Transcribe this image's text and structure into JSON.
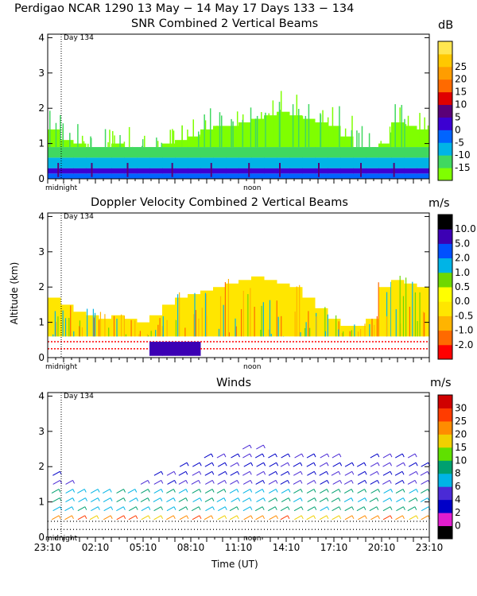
{
  "header": {
    "line1": "Perdigao NCAR 1290  13 May − 14 May 17 Days 133 − 134"
  },
  "colors": {
    "snr": [
      "#7fff00",
      "#40d860",
      "#00b4e6",
      "#0064ff",
      "#3c00d2",
      "#5a0078",
      "#e00000",
      "#ff6a00",
      "#ff9d00",
      "#ffc800",
      "#ffe650"
    ],
    "vel": [
      "#ff0000",
      "#ff6a00",
      "#ffb400",
      "#ffe600",
      "#ffff00",
      "#6ed800",
      "#00b4e6",
      "#0050ff",
      "#3c00b4",
      "#000000"
    ],
    "wind": [
      "#000000",
      "#e11dce",
      "#0000c8",
      "#4a2ad6",
      "#00b4e6",
      "#00a070",
      "#60e000",
      "#f0d000",
      "#ff8c00",
      "#ff3c00",
      "#d00000"
    ]
  },
  "chart_data": [
    {
      "type": "heatmap",
      "title": "SNR Combined 2 Vertical Beams",
      "unit": "dB",
      "ylim": [
        0,
        4.1
      ],
      "yticks": [
        "0",
        "1",
        "2",
        "3",
        "4"
      ],
      "day_marker": "Day 134",
      "time_labels": [
        "midnight",
        "noon"
      ],
      "colorbar": [
        "-15",
        "-10",
        "-5",
        "0",
        "5",
        "10",
        "15",
        "20",
        "25"
      ],
      "profile": [
        1.4,
        1.1,
        1.0,
        0.9,
        0.9,
        1.0,
        0.9,
        0.8,
        0.9,
        1.0,
        1.1,
        1.2,
        1.4,
        1.5,
        1.5,
        1.6,
        1.7,
        1.8,
        1.9,
        1.8,
        1.7,
        1.6,
        1.5,
        1.2,
        0.9,
        0.8,
        1.0,
        1.6,
        1.5,
        1.4
      ]
    },
    {
      "type": "heatmap",
      "title": "Doppler Velocity Combined 2 Vertical Beams",
      "unit": "m/s",
      "ylabel": "Altitude (km)",
      "ylim": [
        0,
        4.1
      ],
      "yticks": [
        "0",
        "1",
        "2",
        "3",
        "4"
      ],
      "day_marker": "Day 134",
      "time_labels": [
        "midnight",
        "noon"
      ],
      "colorbar": [
        "-2.0",
        "-1.0",
        "-0.5",
        "0.0",
        "0.5",
        "1.0",
        "2.0",
        "5.0",
        "10.0"
      ],
      "profile": [
        1.7,
        1.5,
        1.3,
        1.2,
        1.1,
        1.2,
        1.1,
        1.0,
        1.2,
        1.5,
        1.7,
        1.8,
        1.9,
        2.0,
        2.1,
        2.2,
        2.3,
        2.2,
        2.1,
        2.0,
        1.7,
        1.4,
        1.1,
        0.9,
        0.9,
        1.1,
        2.0,
        2.2,
        2.1,
        2.0
      ]
    },
    {
      "type": "scatter",
      "title": "Winds",
      "unit": "m/s",
      "xlabel": "Time (UT)",
      "ylim": [
        0,
        4.1
      ],
      "yticks": [
        "0",
        "1",
        "2",
        "3",
        "4"
      ],
      "day_marker": "Day 134",
      "time_labels": [
        "midnight",
        "noon"
      ],
      "xticks": [
        "23:10",
        "02:10",
        "05:10",
        "08:10",
        "11:10",
        "14:10",
        "17:10",
        "20:10",
        "23:10"
      ],
      "colorbar": [
        "0",
        "2",
        "4",
        "6",
        "8",
        "10",
        "15",
        "20",
        "25",
        "30"
      ],
      "profile": [
        1.8,
        1.6,
        1.5,
        1.4,
        1.3,
        1.4,
        1.5,
        1.6,
        1.8,
        1.9,
        2.1,
        2.2,
        2.3,
        2.4,
        2.5,
        2.6,
        2.6,
        2.5,
        2.4,
        2.3,
        2.3,
        2.4,
        2.3,
        2.2,
        2.2,
        2.3,
        2.4,
        2.4,
        2.3,
        2.2
      ]
    }
  ]
}
